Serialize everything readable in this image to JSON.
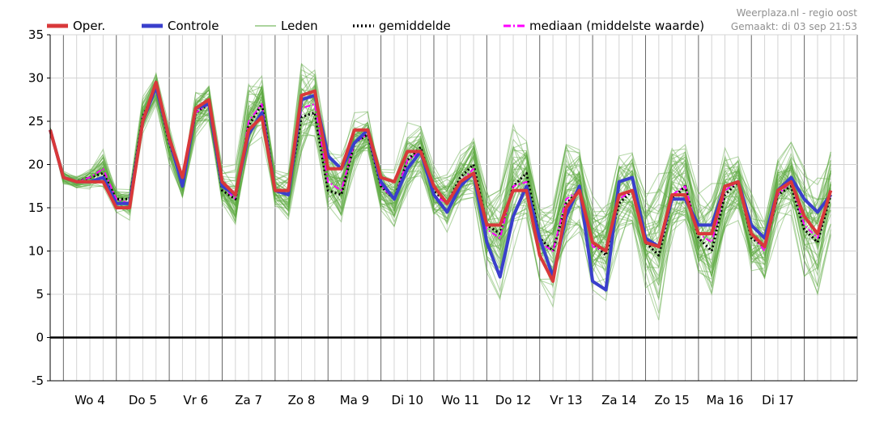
{
  "source": {
    "line1": "Weerplaza.nl - regio oost",
    "line2": "Gemaakt: di 03 sep 21:53"
  },
  "colors": {
    "oper": "#d9383a",
    "controle": "#3a3fcc",
    "leden": "#5aa83e",
    "gemiddelde": "#000000",
    "mediaan": "#ff00ff"
  },
  "chart_data": {
    "type": "line",
    "title": "",
    "xlabel": "",
    "ylabel": "",
    "ylim": [
      -5,
      35
    ],
    "yticks": [
      -5,
      0,
      5,
      10,
      15,
      20,
      25,
      30,
      35
    ],
    "x_unit": "hours since start of plotted range (6-hour steps)",
    "xlim": [
      0,
      366
    ],
    "day_labels": [
      "Wo 4",
      "Do 5",
      "Vr 6",
      "Za 7",
      "Zo 8",
      "Ma 9",
      "Di 10",
      "Wo 11",
      "Do 12",
      "Vr 13",
      "Za 14",
      "Zo 15",
      "Ma 16",
      "Di 17"
    ],
    "grid": true,
    "legend": {
      "position": "top",
      "entries": [
        {
          "key": "oper",
          "label": "Oper.",
          "style": "thick"
        },
        {
          "key": "controle",
          "label": "Controle",
          "style": "thick"
        },
        {
          "key": "leden",
          "label": "Leden",
          "style": "thin"
        },
        {
          "key": "gemiddelde",
          "label": "gemiddelde",
          "style": "dotted"
        },
        {
          "key": "mediaan",
          "label": "mediaan (middelste waarde)",
          "style": "dashdot"
        }
      ]
    },
    "series": [
      {
        "name": "Oper.",
        "key": "oper",
        "values": [
          24,
          18.5,
          18,
          18,
          18,
          15,
          15,
          25,
          29.5,
          23,
          18.5,
          26.5,
          27.5,
          18,
          16.5,
          24,
          25.5,
          17,
          17,
          28,
          28.5,
          19.5,
          19.5,
          24,
          24,
          18.5,
          18,
          21.5,
          21.5,
          17.5,
          15.5,
          18,
          19,
          13,
          13,
          17,
          17,
          9.5,
          6.5,
          15,
          17,
          11,
          10,
          16.5,
          17,
          11,
          10.5,
          16.5,
          16.5,
          12,
          12,
          17.5,
          18,
          12,
          10.5,
          17,
          18,
          14,
          12,
          17
        ]
      },
      {
        "name": "Controle",
        "key": "controle",
        "values": [
          24,
          18.5,
          18,
          18,
          18.5,
          15.5,
          15.5,
          25,
          29,
          23,
          17.5,
          26.5,
          27,
          17.5,
          16.5,
          23.5,
          26,
          17,
          16.5,
          27.5,
          28,
          21,
          19.5,
          22.5,
          24,
          18,
          16,
          19.5,
          21.5,
          16.5,
          14.5,
          17.5,
          19,
          11,
          7,
          14,
          17.5,
          11.5,
          7,
          14,
          17.5,
          6.5,
          5.5,
          18,
          18.5,
          11.5,
          10.5,
          16,
          16,
          13,
          13,
          17.5,
          18,
          13,
          11.5,
          17,
          18.5,
          16,
          14.5,
          16.5
        ]
      },
      {
        "name": "gemiddelde",
        "key": "gemiddelde",
        "values": [
          24,
          18.5,
          18,
          18.5,
          19,
          16,
          16,
          25.5,
          29,
          22.5,
          18,
          26,
          27,
          17,
          16,
          24.5,
          27,
          17,
          17,
          25.5,
          26,
          17,
          16.5,
          22.5,
          23.5,
          17.5,
          16,
          20.5,
          22,
          17,
          15.5,
          18.5,
          20,
          13,
          12,
          17.5,
          19,
          11.5,
          10,
          15.5,
          17,
          11,
          9.5,
          15.5,
          17,
          11,
          9.5,
          16,
          17.5,
          11.5,
          10,
          16.5,
          18,
          11.5,
          10.5,
          16.5,
          17.5,
          12.5,
          11,
          16.5
        ]
      },
      {
        "name": "mediaan (middelste waarde)",
        "key": "mediaan",
        "values": [
          24,
          18.5,
          18,
          18.5,
          19.5,
          16,
          15.5,
          25.5,
          29,
          22.5,
          17.5,
          26,
          27,
          17.5,
          16,
          25,
          27,
          17,
          16.5,
          26.5,
          27,
          18,
          17,
          22.5,
          23.5,
          17.5,
          16,
          20.5,
          21.5,
          16.5,
          15.5,
          18,
          19.5,
          12.5,
          11.5,
          17.5,
          18,
          11,
          10,
          16,
          17,
          10.5,
          10,
          16,
          17,
          11.5,
          10.5,
          16.5,
          17.5,
          12,
          11,
          17,
          18,
          12,
          10,
          16.5,
          18,
          13,
          11.5,
          17
        ]
      }
    ],
    "members": {
      "name": "Leden",
      "count": 50,
      "spread_min": [
        23.5,
        17.5,
        17,
        17,
        16.5,
        14,
        13.5,
        23,
        26.5,
        20,
        16,
        23,
        24,
        15,
        12,
        20,
        22.5,
        14,
        13,
        20,
        22,
        13,
        12,
        18.5,
        20.5,
        14,
        12,
        16,
        18,
        13,
        11,
        13.5,
        15,
        7,
        4,
        10,
        12.5,
        6,
        3.5,
        9,
        11,
        4,
        3.5,
        10,
        12,
        5.5,
        1.5,
        10,
        12,
        5.5,
        3,
        11,
        13,
        5,
        4.5,
        11,
        12.5,
        6,
        2.5,
        11
      ]
    }
  }
}
